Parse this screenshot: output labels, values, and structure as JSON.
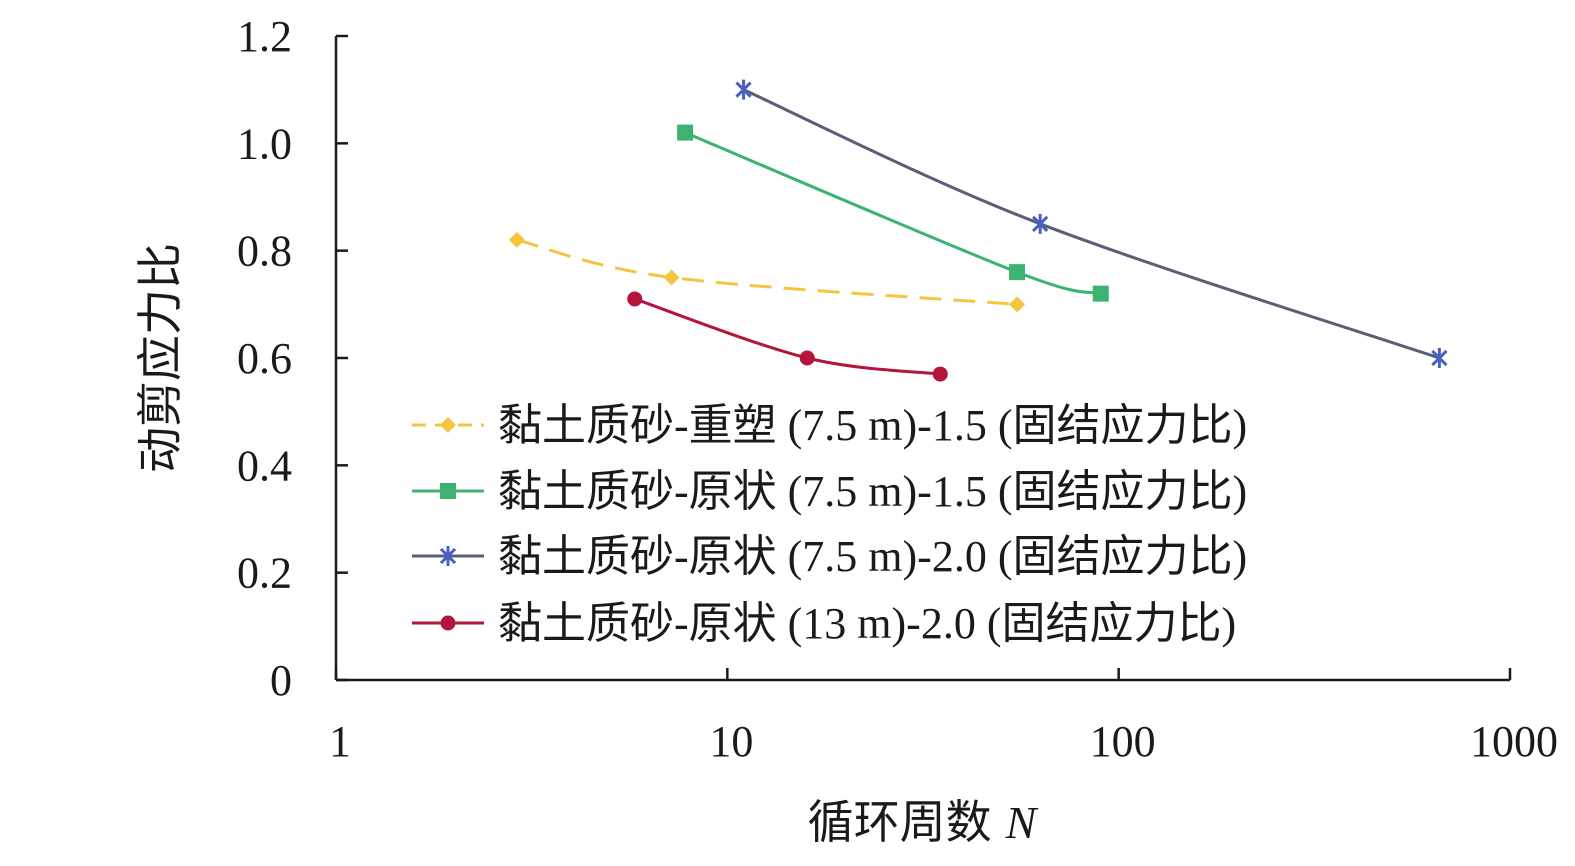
{
  "chart_data": {
    "type": "line",
    "title": "",
    "xlabel": "循环周数",
    "xlabel_var": "N",
    "ylabel": "动剪应力比",
    "xscale": "log",
    "xlim": [
      1,
      1000
    ],
    "ylim": [
      0,
      1.2
    ],
    "x_ticks": [
      1,
      10,
      100,
      1000
    ],
    "x_tick_labels": [
      "1",
      "10",
      "100",
      "1000"
    ],
    "y_ticks": [
      0,
      0.2,
      0.4,
      0.6,
      0.8,
      1.0,
      1.2
    ],
    "y_tick_labels": [
      "0",
      "0.2",
      "0.4",
      "0.6",
      "0.8",
      "1.0",
      "1.2"
    ],
    "grid": false,
    "legend_position": "bottom-center",
    "series": [
      {
        "name": "黏土质砂-重塑 (7.5 m)-1.5 (固结应力比)",
        "color": "#f5c542",
        "line_style": "dashed",
        "marker": "diamond",
        "x": [
          2.9,
          7.2,
          55
        ],
        "y": [
          0.82,
          0.75,
          0.7
        ]
      },
      {
        "name": "黏土质砂-原状 (7.5 m)-1.5 (固结应力比)",
        "color": "#3cb371",
        "line_style": "solid",
        "marker": "square",
        "x": [
          7.8,
          55,
          90
        ],
        "y": [
          1.02,
          0.76,
          0.72
        ]
      },
      {
        "name": "黏土质砂-原状 (7.5 m)-2.0 (固结应力比)",
        "color": "#4a5fc1",
        "line_style": "solid",
        "marker": "asterisk",
        "x": [
          11,
          63,
          660
        ],
        "y": [
          1.1,
          0.85,
          0.6
        ]
      },
      {
        "name": "黏土质砂-原状 (13 m)-2.0 (固结应力比)",
        "color": "#b5143c",
        "line_style": "solid",
        "marker": "circle",
        "x": [
          5.8,
          16,
          35
        ],
        "y": [
          0.71,
          0.6,
          0.57
        ]
      }
    ]
  }
}
